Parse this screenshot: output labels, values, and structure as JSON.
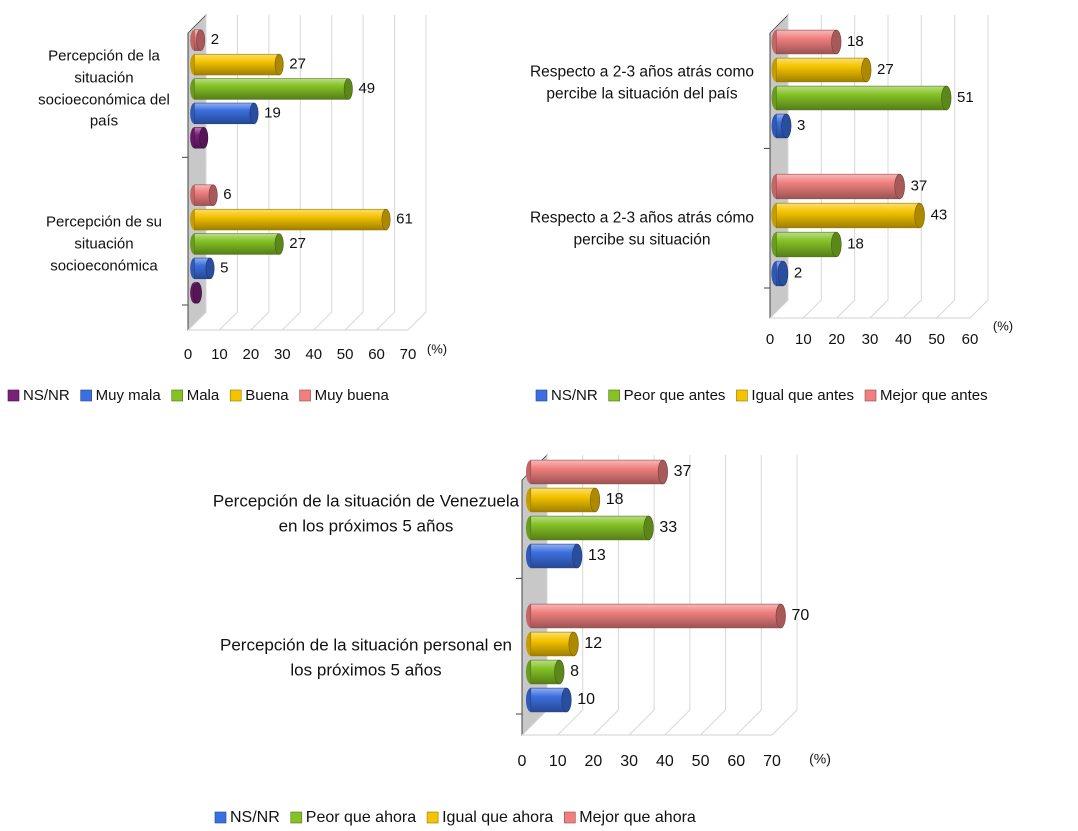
{
  "chart_data": [
    {
      "type": "bar",
      "orientation": "horizontal",
      "style": "3d-cylinder",
      "categories": [
        "Percepción de la situación socioeconómica del país",
        "Percepción de su situación socioeconómica"
      ],
      "series": [
        {
          "name": "NS/NR",
          "color": "#7a1f7a",
          "values": [
            3,
            1
          ],
          "data_labels": false
        },
        {
          "name": "Muy mala",
          "color": "#3b6fe0",
          "values": [
            19,
            5
          ]
        },
        {
          "name": "Mala",
          "color": "#84c225",
          "values": [
            49,
            27
          ]
        },
        {
          "name": "Buena",
          "color": "#f5c400",
          "values": [
            27,
            61
          ]
        },
        {
          "name": "Muy buena",
          "color": "#f07f7f",
          "values": [
            2,
            6
          ]
        }
      ],
      "xlim": [
        0,
        70
      ],
      "xticks": [
        0,
        10,
        20,
        30,
        40,
        50,
        60,
        70
      ],
      "xlabel": "(%)",
      "grid": true
    },
    {
      "type": "bar",
      "orientation": "horizontal",
      "style": "3d-cylinder",
      "categories": [
        "Respecto a 2-3 años atrás como percibe la situación del país",
        "Respecto a 2-3 años atrás cómo percibe su situación"
      ],
      "series": [
        {
          "name": "NS/NR",
          "color": "#3b6fe0",
          "values": [
            3,
            2
          ]
        },
        {
          "name": "Peor que antes",
          "color": "#84c225",
          "values": [
            51,
            18
          ]
        },
        {
          "name": "Igual que antes",
          "color": "#f5c400",
          "values": [
            27,
            43
          ]
        },
        {
          "name": "Mejor que antes",
          "color": "#f07f7f",
          "values": [
            18,
            37
          ]
        }
      ],
      "xlim": [
        0,
        60
      ],
      "xticks": [
        0,
        10,
        20,
        30,
        40,
        50,
        60
      ],
      "xlabel": "(%)",
      "grid": true
    },
    {
      "type": "bar",
      "orientation": "horizontal",
      "style": "3d-cylinder",
      "categories": [
        "Percepción de la situación de Venezuela en los próximos 5 años",
        "Percepción de la situación personal en los próximos 5 años"
      ],
      "series": [
        {
          "name": "NS/NR",
          "color": "#3b6fe0",
          "values": [
            13,
            10
          ]
        },
        {
          "name": "Peor que ahora",
          "color": "#84c225",
          "values": [
            33,
            8
          ]
        },
        {
          "name": "Igual que ahora",
          "color": "#f5c400",
          "values": [
            18,
            12
          ]
        },
        {
          "name": "Mejor que ahora",
          "color": "#f07f7f",
          "values": [
            37,
            70
          ]
        }
      ],
      "xlim": [
        0,
        70
      ],
      "xticks": [
        0,
        10,
        20,
        30,
        40,
        50,
        60,
        70
      ],
      "xlabel": "(%)",
      "grid": true
    }
  ]
}
